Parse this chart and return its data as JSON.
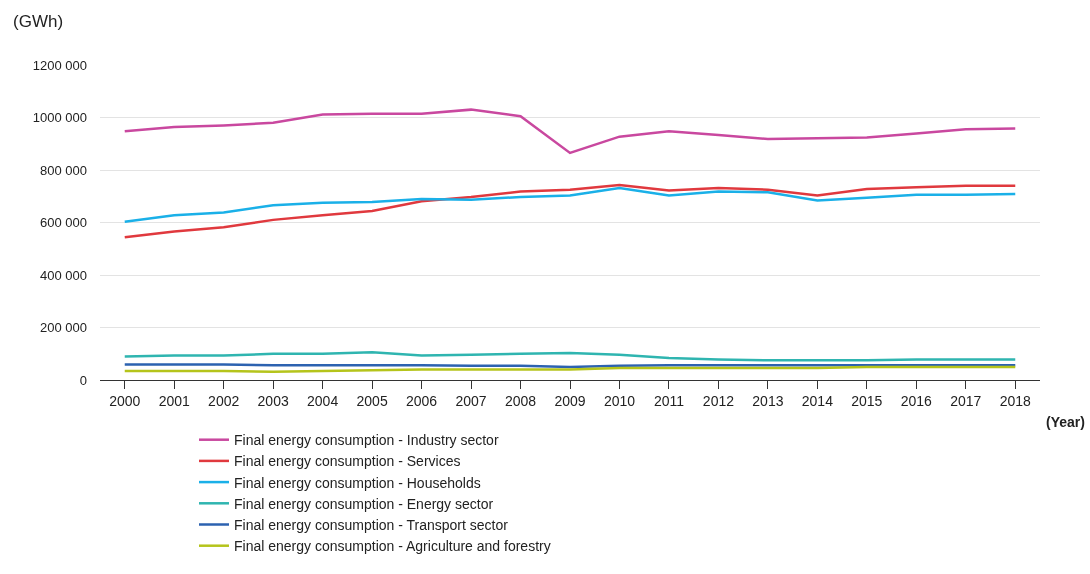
{
  "chart_data": {
    "type": "line",
    "ylabel": "(GWh)",
    "xlabel": "(Year)",
    "categories": [
      "2000",
      "2001",
      "2002",
      "2003",
      "2004",
      "2005",
      "2006",
      "2007",
      "2008",
      "2009",
      "2010",
      "2011",
      "2012",
      "2013",
      "2014",
      "2015",
      "2016",
      "2017",
      "2018"
    ],
    "ylim": [
      0,
      1200000
    ],
    "yticks": [
      0,
      {
        "value": 200000,
        "label": "200 000"
      },
      {
        "value": 400000,
        "label": "400 000"
      },
      {
        "value": 600000,
        "label": "600 000"
      },
      {
        "value": 800000,
        "label": "800 000"
      },
      {
        "value": 1000000,
        "label": "1000 000"
      },
      {
        "value": 1200000,
        "label": "1200 000"
      }
    ],
    "grid": "y",
    "legend": "bottom",
    "marker": "none",
    "line_style": "solid",
    "series": [
      {
        "name": "Final energy consumption - Industry sector",
        "color": "#c9489f",
        "values": [
          948000,
          964000,
          970000,
          980000,
          1011000,
          1014000,
          1014000,
          1030000,
          1005000,
          865000,
          927000,
          948000,
          933000,
          918000,
          921000,
          924000,
          939000,
          955000,
          958000
        ]
      },
      {
        "name": "Final energy consumption - Services",
        "color": "#e0393e",
        "values": [
          544000,
          566000,
          582000,
          610000,
          628000,
          644000,
          681000,
          697000,
          718000,
          725000,
          743000,
          722000,
          731000,
          725000,
          703000,
          728000,
          734000,
          740000,
          740000
        ]
      },
      {
        "name": "Final energy consumption - Households",
        "color": "#1ab0e8",
        "values": [
          603000,
          628000,
          638000,
          666000,
          675000,
          678000,
          690000,
          687000,
          697000,
          703000,
          731000,
          703000,
          718000,
          715000,
          684000,
          694000,
          706000,
          706000,
          709000
        ]
      },
      {
        "name": "Final energy consumption - Energy sector",
        "color": "#2fb5b0",
        "values": [
          90000,
          93000,
          93000,
          100000,
          100000,
          106000,
          93000,
          96000,
          100000,
          103000,
          96000,
          84000,
          78000,
          75000,
          75000,
          75000,
          78000,
          78000,
          78000
        ]
      },
      {
        "name": "Final energy consumption - Transport sector",
        "color": "#2c62b0",
        "values": [
          59000,
          59000,
          59000,
          56000,
          56000,
          56000,
          56000,
          54000,
          54000,
          50000,
          54000,
          56000,
          56000,
          56000,
          56000,
          56000,
          56000,
          56000,
          56000
        ]
      },
      {
        "name": "Final energy consumption - Agriculture and forestry",
        "color": "#b5c41b",
        "values": [
          34000,
          34000,
          34000,
          31000,
          34000,
          37000,
          40000,
          40000,
          40000,
          40000,
          46000,
          46000,
          46000,
          46000,
          46000,
          50000,
          50000,
          50000,
          50000
        ]
      }
    ]
  }
}
